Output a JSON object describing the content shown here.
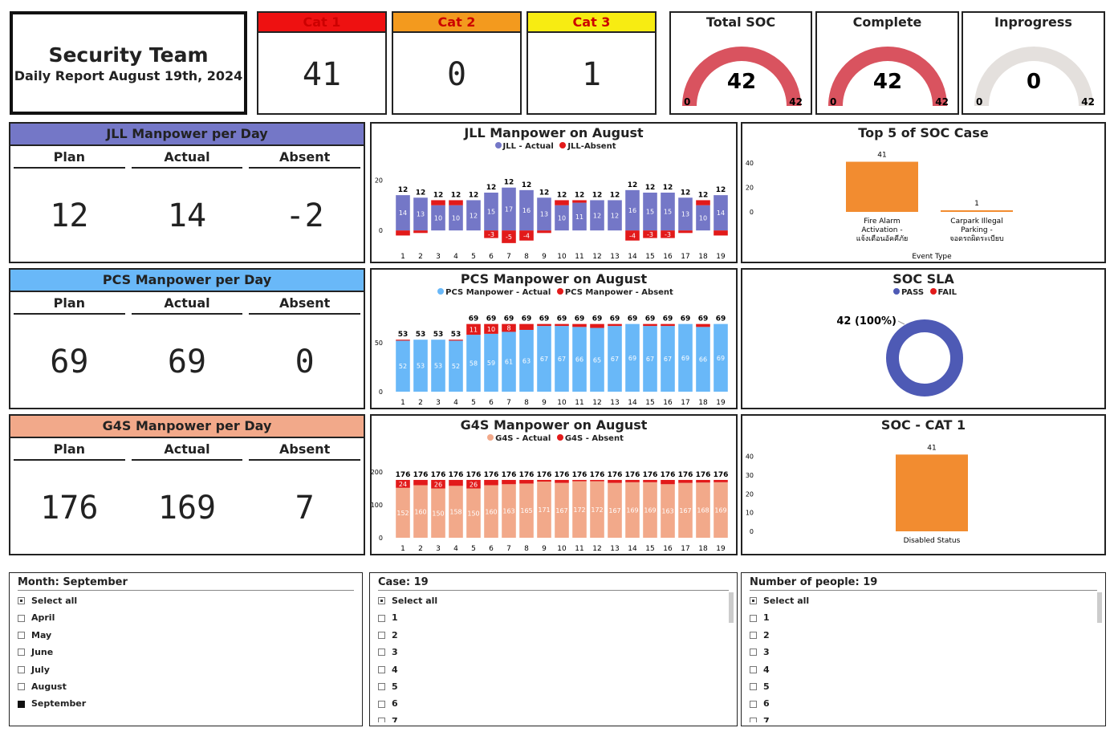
{
  "header": {
    "team": "Security Team",
    "subtitle": "Daily Report August 19th, 2024"
  },
  "cats": [
    {
      "label": "Cat 1",
      "value": "41",
      "color": "#ee1111"
    },
    {
      "label": "Cat 2",
      "value": "0",
      "color": "#f39a1e"
    },
    {
      "label": "Cat 3",
      "value": "1",
      "color": "#f7ec12"
    }
  ],
  "gauges": [
    {
      "label": "Total SOC",
      "value": "42",
      "min": "0",
      "max": "42",
      "fraction": 1,
      "color": "#d9535f"
    },
    {
      "label": "Complete",
      "value": "42",
      "min": "0",
      "max": "42",
      "fraction": 1,
      "color": "#d9535f"
    },
    {
      "label": "Inprogress",
      "value": "0",
      "min": "0",
      "max": "42",
      "fraction": 0,
      "color": "#d9535f"
    }
  ],
  "manpower": [
    {
      "title": "JLL Manpower per Day",
      "color": "#7477c7",
      "plan_label": "Plan",
      "actual_label": "Actual",
      "absent_label": "Absent",
      "plan": "12",
      "actual": "14",
      "absent": "-2"
    },
    {
      "title": "PCS Manpower per Day",
      "color": "#69b8f8",
      "plan_label": "Plan",
      "actual_label": "Actual",
      "absent_label": "Absent",
      "plan": "69",
      "actual": "69",
      "absent": "0"
    },
    {
      "title": "G4S Manpower per Day",
      "color": "#f2a98a",
      "plan_label": "Plan",
      "actual_label": "Actual",
      "absent_label": "Absent",
      "plan": "176",
      "actual": "169",
      "absent": "7"
    }
  ],
  "chart_data": [
    {
      "type": "bar",
      "stacked": true,
      "title": "JLL Manpower on August",
      "categories": [
        "1",
        "2",
        "3",
        "4",
        "5",
        "6",
        "7",
        "8",
        "9",
        "10",
        "11",
        "12",
        "13",
        "14",
        "15",
        "16",
        "17",
        "18",
        "19"
      ],
      "series": [
        {
          "name": "JLL - Actual",
          "color": "#7477c7",
          "values": [
            14,
            13,
            10,
            10,
            12,
            15,
            17,
            16,
            13,
            10,
            11,
            12,
            12,
            16,
            15,
            15,
            13,
            10,
            14
          ]
        },
        {
          "name": "JLL-Absent",
          "color": "#e21a1a",
          "values": [
            -2,
            -1,
            2,
            2,
            0,
            -3,
            -5,
            -4,
            -1,
            2,
            1,
            0,
            0,
            -4,
            -3,
            -3,
            -1,
            2,
            -2
          ]
        }
      ],
      "totals": [
        12,
        12,
        12,
        12,
        12,
        12,
        12,
        12,
        12,
        12,
        12,
        12,
        12,
        12,
        12,
        12,
        12,
        12,
        12
      ],
      "y_ticks": [
        "20",
        "0"
      ],
      "ylim": [
        -6,
        22
      ]
    },
    {
      "type": "bar",
      "stacked": true,
      "title": "PCS Manpower on August",
      "categories": [
        "1",
        "2",
        "3",
        "4",
        "5",
        "6",
        "7",
        "8",
        "9",
        "10",
        "11",
        "12",
        "13",
        "14",
        "15",
        "16",
        "17",
        "18",
        "19"
      ],
      "series": [
        {
          "name": "PCS Manpower - Actual",
          "color": "#69b8f8",
          "values": [
            52,
            53,
            53,
            52,
            58,
            59,
            61,
            63,
            67,
            67,
            66,
            65,
            67,
            69,
            67,
            67,
            69,
            66,
            69
          ]
        },
        {
          "name": "PCS Manpower - Absent",
          "color": "#e21a1a",
          "values": [
            1,
            0,
            0,
            1,
            11,
            10,
            8,
            6,
            2,
            2,
            3,
            4,
            2,
            0,
            2,
            2,
            0,
            3,
            0
          ]
        }
      ],
      "totals": [
        53,
        53,
        53,
        53,
        69,
        69,
        69,
        69,
        69,
        69,
        69,
        69,
        69,
        69,
        69,
        69,
        69,
        69,
        69
      ],
      "y_ticks": [
        "50",
        "0"
      ],
      "ylim": [
        0,
        72
      ]
    },
    {
      "type": "bar",
      "stacked": true,
      "title": "G4S Manpower on August",
      "categories": [
        "1",
        "2",
        "3",
        "4",
        "5",
        "6",
        "7",
        "8",
        "9",
        "10",
        "11",
        "12",
        "13",
        "14",
        "15",
        "16",
        "17",
        "18",
        "19"
      ],
      "series": [
        {
          "name": "G4S - Actual",
          "color": "#f2a98a",
          "values": [
            152,
            160,
            150,
            158,
            150,
            160,
            163,
            165,
            171,
            167,
            172,
            172,
            167,
            169,
            169,
            163,
            167,
            168,
            169
          ]
        },
        {
          "name": "G4S - Absent",
          "color": "#e21a1a",
          "values": [
            24,
            16,
            26,
            18,
            26,
            16,
            13,
            11,
            5,
            9,
            4,
            4,
            9,
            7,
            7,
            13,
            9,
            8,
            7
          ]
        }
      ],
      "totals": [
        176,
        176,
        176,
        176,
        176,
        176,
        176,
        176,
        176,
        176,
        176,
        176,
        176,
        176,
        176,
        176,
        176,
        176,
        176
      ],
      "y_ticks": [
        "200",
        "100",
        "0"
      ],
      "ylim": [
        0,
        215
      ]
    },
    {
      "type": "bar",
      "title": "Top 5 of SOC Case",
      "categories": [
        "Fire Alarm Activation - แจ้งเตือนอัคคีภัย",
        "Carpark Illegal Parking - จอดรถผิดระเบียบ"
      ],
      "values": [
        41,
        1
      ],
      "xlabel": "Event Type",
      "y_ticks": [
        "40",
        "20",
        "0"
      ],
      "ylim": [
        0,
        42
      ],
      "color": "#f28c30"
    },
    {
      "type": "pie",
      "title": "SOC SLA",
      "series": [
        {
          "name": "PASS",
          "color": "#4e5ab5",
          "value": 42
        },
        {
          "name": "FAIL",
          "color": "#e21a1a",
          "value": 0
        }
      ],
      "data_label": "42 (100%)"
    },
    {
      "type": "bar",
      "title": "SOC - CAT 1",
      "categories": [
        "Disabled Status"
      ],
      "values": [
        41
      ],
      "y_ticks": [
        "40",
        "30",
        "20",
        "10",
        "0"
      ],
      "ylim": [
        0,
        42
      ],
      "color": "#f28c30"
    }
  ],
  "slicers": [
    {
      "header": "Month: September",
      "items": [
        "Select all",
        "April",
        "May",
        "June",
        "July",
        "August",
        "September"
      ],
      "states": [
        "partial",
        "off",
        "off",
        "off",
        "off",
        "off",
        "on"
      ]
    },
    {
      "header": "Case: 19",
      "items": [
        "Select all",
        "1",
        "2",
        "3",
        "4",
        "5",
        "6",
        "7"
      ],
      "states": [
        "partial",
        "off",
        "off",
        "off",
        "off",
        "off",
        "off",
        "off"
      ]
    },
    {
      "header": "Number of people: 19",
      "items": [
        "Select all",
        "1",
        "2",
        "3",
        "4",
        "5",
        "6",
        "7"
      ],
      "states": [
        "partial",
        "off",
        "off",
        "off",
        "off",
        "off",
        "off",
        "off"
      ]
    }
  ]
}
